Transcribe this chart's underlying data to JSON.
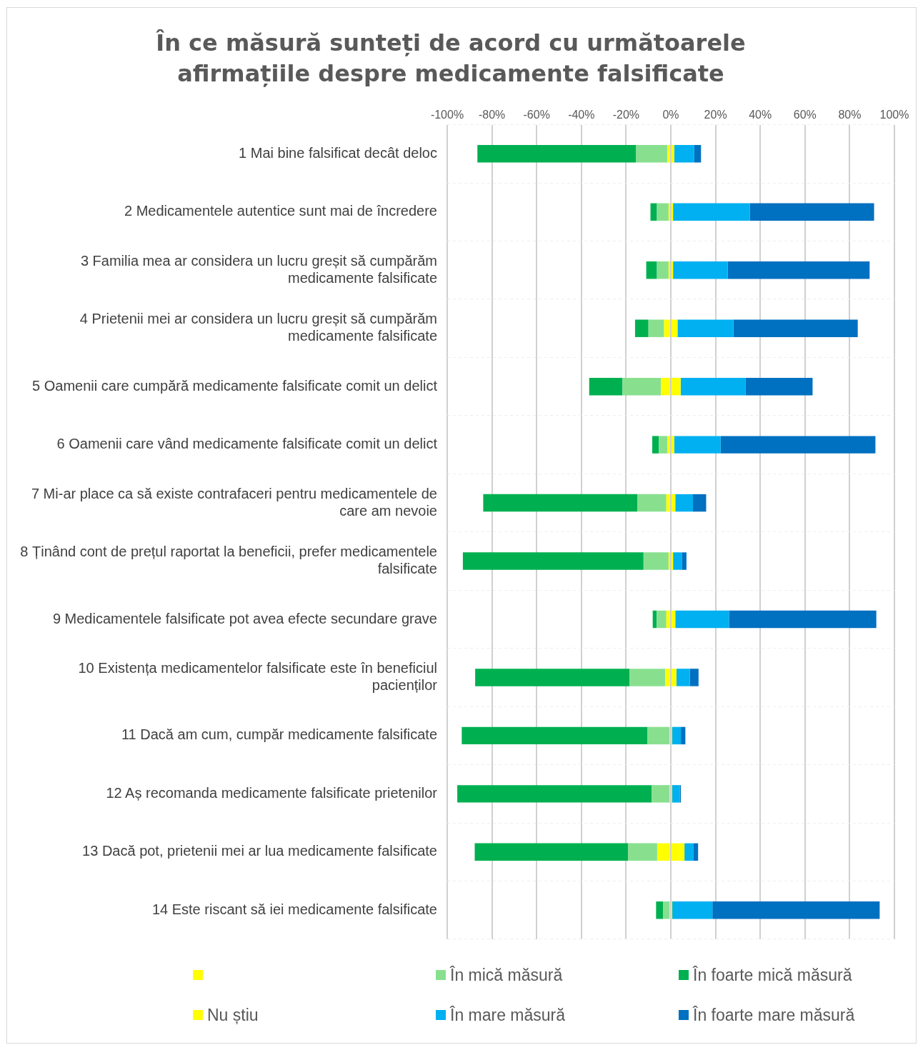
{
  "chart_data": {
    "type": "bar",
    "orientation": "horizontal",
    "stacked": true,
    "title": "În ce măsură sunteți de acord cu următoarele afirmațiile despre medicamente falsificate",
    "categories": [
      "1 Mai bine falsificat decât deloc",
      "2 Medicamentele autentice sunt mai de încredere",
      "3 Familia mea ar considera un lucru greșit să cumpărăm medicamente falsificate",
      "4 Prietenii mei ar considera un lucru greșit să cumpărăm medicamente falsificate",
      "5 Oamenii care cumpără medicamente falsificate comit un delict",
      "6 Oamenii care vând medicamente falsificate comit un delict",
      "7 Mi-ar place ca să existe contrafaceri pentru medicamentele de care am nevoie",
      "8 Ținând cont de prețul raportat la beneficii, prefer medicamentele falsificate",
      "9 Medicamentele falsificate pot avea efecte secundare grave",
      "10 Existența medicamentelor falsificate este în beneficiul pacienților",
      "11 Dacă am cum, cumpăr medicamente falsificate",
      "12 Aș recomanda medicamente falsificate prietenilor",
      "13 Dacă pot, prietenii mei ar lua medicamente falsificate",
      "14 Este riscant să iei medicamente falsificate"
    ],
    "series": [
      {
        "color": "#ffff00",
        "values": [
          -1.5,
          -1,
          -1,
          -3,
          -4.4,
          -1.5,
          -2,
          -1,
          -2,
          -2.5,
          -0.5,
          -0.5,
          -6.1,
          -0.6
        ]
      },
      {
        "name": "În mică măsură",
        "color": "#88e08f",
        "values": [
          -14,
          -5.2,
          -5.2,
          -7,
          -17.2,
          -3.9,
          -13,
          -11.2,
          -4.3,
          -15.9,
          -9.9,
          -8.1,
          -13,
          -2.9
        ]
      },
      {
        "name": "În foarte mică măsură",
        "color": "#00b050",
        "values": [
          -71,
          -2.9,
          -4.8,
          -6,
          -14.9,
          -2.9,
          -68.9,
          -80.8,
          -1.8,
          -69.1,
          -83.1,
          -86.9,
          -68.6,
          -3.1
        ]
      },
      {
        "name": "Nu știu",
        "color": "#ffff00",
        "values": [
          1.5,
          1,
          1,
          3,
          4.4,
          1.5,
          2,
          1,
          2,
          2.5,
          0.5,
          0.5,
          6.1,
          0.6
        ]
      },
      {
        "name": "În mare măsură",
        "color": "#00b0f0",
        "values": [
          9,
          34.4,
          24.4,
          25,
          29.1,
          20.8,
          7.9,
          3.9,
          24,
          6,
          4,
          3.5,
          4.1,
          18
        ]
      },
      {
        "name": "În foarte mare măsură",
        "color": "#0070c0",
        "values": [
          3,
          55.5,
          63.5,
          55.6,
          29.9,
          69.2,
          5.9,
          2.1,
          65.9,
          3.9,
          2,
          0.5,
          2,
          74.8
        ]
      }
    ],
    "xlim": [
      -100,
      100
    ],
    "xticks": [
      {
        "value": -100,
        "label": "-100%"
      },
      {
        "value": -80,
        "label": "-80%"
      },
      {
        "value": -60,
        "label": "-60%"
      },
      {
        "value": -40,
        "label": "-40%"
      },
      {
        "value": -20,
        "label": "-20%"
      },
      {
        "value": 0,
        "label": "0%"
      },
      {
        "value": 20,
        "label": "20%"
      },
      {
        "value": 40,
        "label": "40%"
      },
      {
        "value": 60,
        "label": "60%"
      },
      {
        "value": 80,
        "label": "80%"
      },
      {
        "value": 100,
        "label": "100%"
      }
    ],
    "grid": true,
    "legend": "bottom"
  }
}
